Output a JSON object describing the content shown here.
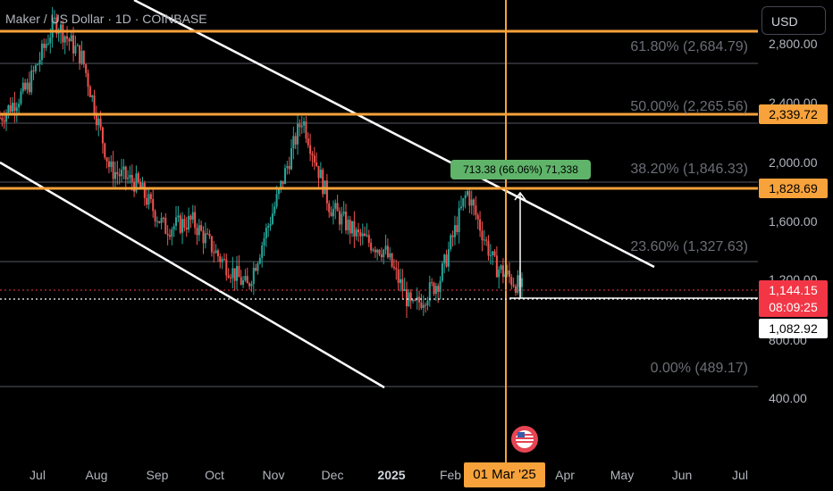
{
  "chart": {
    "title": "Maker / US Dollar · 1D · COINBASE",
    "currency_button": "USD",
    "y_ticks": [
      "2,800.00",
      "2,400.00",
      "2,000.00",
      "1,600.00",
      "1,200.00",
      "800.00",
      "400.00"
    ],
    "x_ticks": [
      "Jul",
      "Aug",
      "Sep",
      "Oct",
      "Nov",
      "Dec",
      "2025",
      "Feb",
      "Apr",
      "May",
      "Jun",
      "Jul"
    ],
    "crosshair_date": "01 Mar '25",
    "fib_levels": [
      {
        "label": "61.80% (2,684.79)"
      },
      {
        "label": "50.00% (2,265.56)"
      },
      {
        "label": "38.20% (1,846.33)"
      },
      {
        "label": "23.60% (1,327.63)"
      },
      {
        "label": "0.00% (489.17)"
      }
    ],
    "price_tags": {
      "level_high": "2,339.72",
      "level_mid": "1,828.69",
      "current_price": "1,144.15",
      "countdown": "08:09:25",
      "crosshair_price": "1,082.92"
    },
    "measure_label": "713.38 (66.06%) 71,338",
    "colors": {
      "background": "#000000",
      "up": "#26a69a",
      "down": "#ef5350",
      "level": "#f7a23b",
      "fib_line": "#555860",
      "trend": "#ffffff",
      "measure": "#5fb46a",
      "current_price": "#f23645"
    },
    "icons": [
      "us-flag-icon"
    ]
  },
  "chart_data": {
    "type": "candlestick",
    "title": "Maker / US Dollar · 1D · COINBASE",
    "y_axis": {
      "ticks": [
        2800,
        2400,
        2000,
        1600,
        1200,
        800,
        400
      ]
    },
    "x_axis": {
      "ticks": [
        "Jul",
        "Aug",
        "Sep",
        "Oct",
        "Nov",
        "Dec",
        "2025",
        "Feb",
        "Apr",
        "May",
        "Jun",
        "Jul"
      ]
    },
    "horizontal_levels": [
      2339.72,
      1828.69
    ],
    "fibonacci": [
      {
        "ratio": "61.80%",
        "price": 2684.79
      },
      {
        "ratio": "50.00%",
        "price": 2265.56
      },
      {
        "ratio": "38.20%",
        "price": 1846.33
      },
      {
        "ratio": "23.60%",
        "price": 1327.63
      },
      {
        "ratio": "0.00%",
        "price": 489.17
      }
    ],
    "last_price": 1144.15,
    "crosshair": {
      "date": "01 Mar '25",
      "price": 1082.92
    },
    "measurement": "713.38 (66.06%) 71,338",
    "close_path": [
      {
        "x": "Jun",
        "close": 2300
      },
      {
        "x": "Jul",
        "close": 2500
      },
      {
        "x": "late Jul",
        "close": 2950
      },
      {
        "x": "early Aug",
        "close": 2700
      },
      {
        "x": "mid Aug",
        "close": 1950
      },
      {
        "x": "Sep",
        "close": 1850
      },
      {
        "x": "mid Sep",
        "close": 1550
      },
      {
        "x": "Oct",
        "close": 1600
      },
      {
        "x": "mid Oct",
        "close": 1350
      },
      {
        "x": "early Nov",
        "close": 1150
      },
      {
        "x": "late Nov",
        "close": 1700
      },
      {
        "x": "early Dec",
        "close": 2300
      },
      {
        "x": "late Dec",
        "close": 1700
      },
      {
        "x": "2025",
        "close": 1500
      },
      {
        "x": "mid Jan",
        "close": 1400
      },
      {
        "x": "Feb",
        "close": 1000
      },
      {
        "x": "mid Feb",
        "close": 1200
      },
      {
        "x": "late Feb",
        "close": 1800
      },
      {
        "x": "01 Mar '25",
        "close": 1300
      },
      {
        "x": "early Mar",
        "close": 1144
      }
    ]
  }
}
